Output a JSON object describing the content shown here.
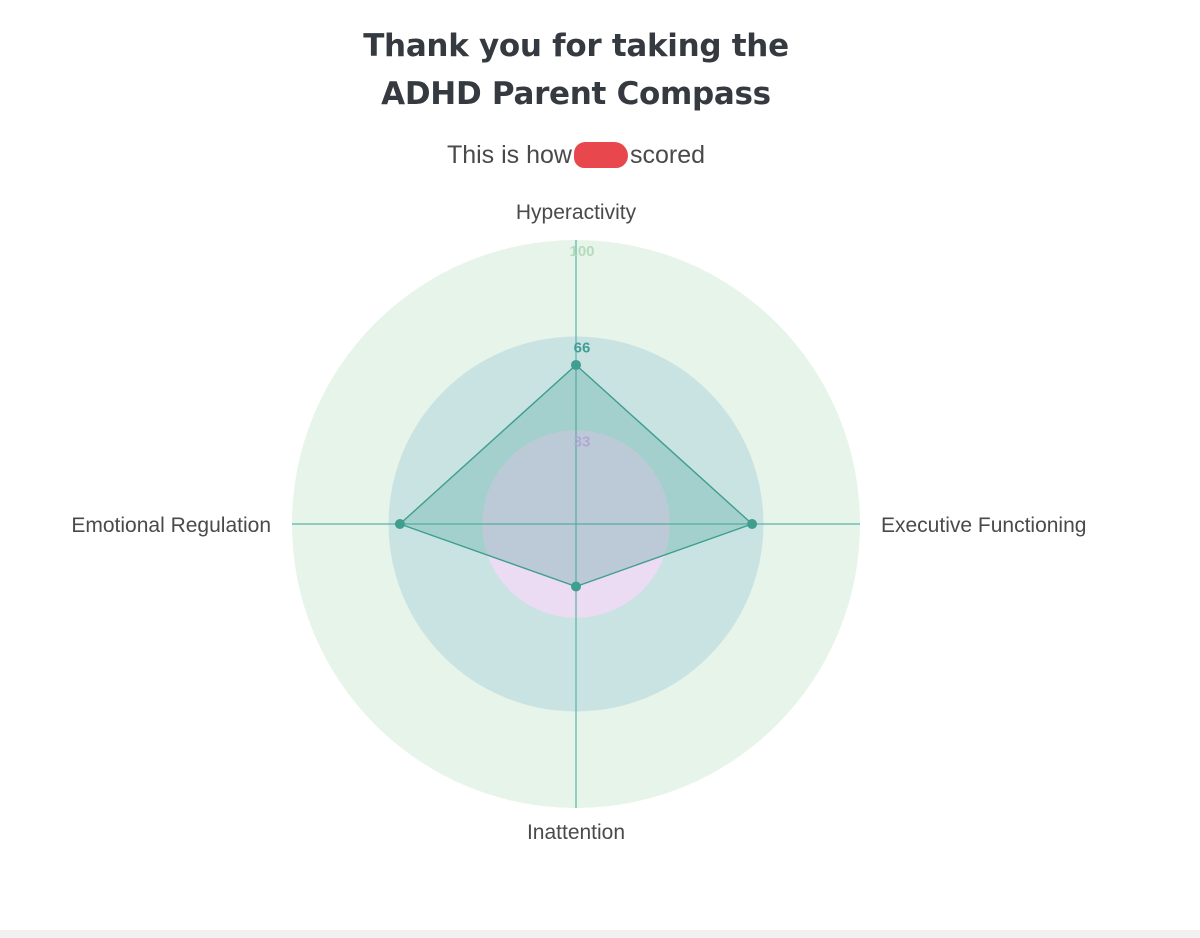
{
  "header": {
    "title_line1": "Thank you for taking the",
    "title_line2": "ADHD Parent Compass",
    "subtitle_before": "This is how",
    "subtitle_after": "scored"
  },
  "chart_data": {
    "type": "radar",
    "axes": [
      "Hyperactivity",
      "Executive Functioning",
      "Inattention",
      "Emotional Regulation"
    ],
    "rings": [
      {
        "value": 100,
        "color": "#e6f4ea",
        "label_color": "#b4dcbc"
      },
      {
        "value": 66,
        "color": "#c9e3e3",
        "label_color": "#3f9e96"
      },
      {
        "value": 33,
        "color": "#ecdcf3",
        "label_color": "#b3a6d6"
      }
    ],
    "tick_labels": [
      "100",
      "66",
      "33"
    ],
    "rlim": [
      0,
      100
    ],
    "series": [
      {
        "values": [
          56,
          62,
          22,
          62
        ],
        "line_color": "#3f9e8f",
        "fill_color": "rgba(63,158,143,0.28)"
      }
    ],
    "axis_line_color": "#5bb3a7"
  }
}
